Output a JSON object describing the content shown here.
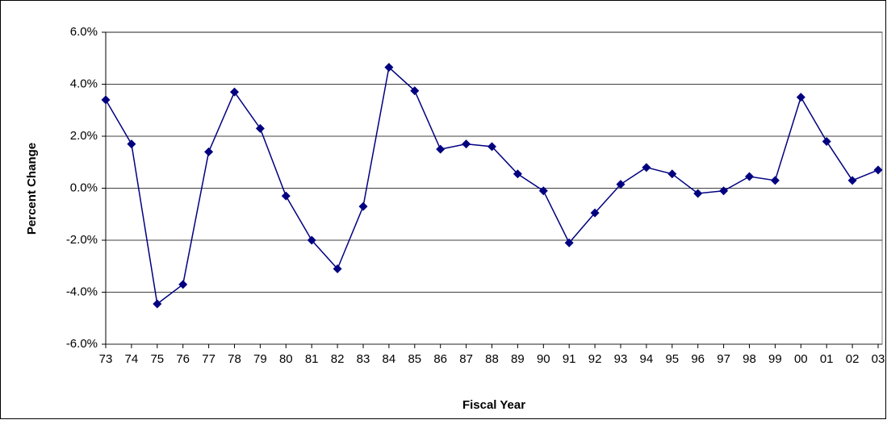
{
  "chart_data": {
    "type": "line",
    "x_label": "Fiscal Year",
    "y_label": "Percent Change",
    "categories": [
      "73",
      "74",
      "75",
      "76",
      "77",
      "78",
      "79",
      "80",
      "81",
      "82",
      "83",
      "84",
      "85",
      "86",
      "87",
      "88",
      "89",
      "90",
      "91",
      "92",
      "93",
      "94",
      "95",
      "96",
      "97",
      "98",
      "99",
      "00",
      "01",
      "02",
      "03"
    ],
    "series": [
      {
        "color": "#000080",
        "values": [
          3.4,
          1.7,
          -4.45,
          -3.7,
          1.4,
          3.7,
          2.3,
          -0.3,
          -2.0,
          -3.1,
          -0.7,
          4.65,
          3.75,
          1.5,
          1.7,
          1.6,
          0.55,
          -0.1,
          -2.1,
          -0.95,
          0.15,
          0.8,
          0.55,
          -0.2,
          -0.1,
          0.45,
          0.3,
          3.5,
          1.8,
          0.3,
          0.7
        ]
      }
    ],
    "ylim": [
      -6,
      6
    ],
    "yticks": [
      {
        "value": -6,
        "label": "-6.0%"
      },
      {
        "value": -4,
        "label": "-4.0%"
      },
      {
        "value": -2,
        "label": "-2.0%"
      },
      {
        "value": 0,
        "label": "0.0%"
      },
      {
        "value": 2,
        "label": "2.0%"
      },
      {
        "value": 4,
        "label": "4.0%"
      },
      {
        "value": 6,
        "label": "6.0%"
      }
    ],
    "grid": true
  }
}
